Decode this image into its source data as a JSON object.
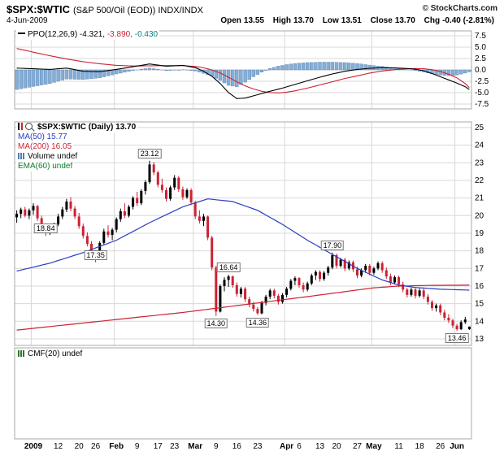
{
  "header": {
    "symbol": "$SPX:$WTIC",
    "description": "(S&P 500/Oil (EOD)) INDX/INDX",
    "copyright": "© StockCharts.com",
    "date": "4-Jun-2009",
    "quote": {
      "open_label": "Open",
      "open": "13.55",
      "high_label": "High",
      "high": "13.70",
      "low_label": "Low",
      "low": "13.51",
      "close_label": "Close",
      "close": "13.70",
      "chg_label": "Chg",
      "chg": "-0.40 (-2.81%)"
    }
  },
  "legends": {
    "ppo": {
      "label": "PPO(12,26,9) -4.321,",
      "signal_value": "-3.890,",
      "hist_value": "-0.430"
    },
    "main": {
      "symbol": "$SPX:$WTIC (Daily) 13.70",
      "ma50": "MA(50) 15.77",
      "ma200": "MA(200) 16.05",
      "volume": "Volume undef",
      "ema": "EMA(60) undef"
    },
    "cmf": {
      "label": "CMF(20) undef"
    }
  },
  "colors": {
    "up": "#000000",
    "down": "#cc2233",
    "ma50": "#2a3ec2",
    "ma200": "#cc2233",
    "ppo_line": "#000000",
    "signal": "#cc2233",
    "hist_fill": "#85aed6",
    "hist_stroke": "#5580b0",
    "grid": "#d8d8d8",
    "border": "#a8a8a8",
    "legend_blue": "#2a3ec2",
    "legend_red": "#cc2233",
    "legend_green": "#0b7d2b",
    "legend_teal": "#0b7d7d"
  },
  "chart_data": {
    "type": "candlestick",
    "title": "$SPX:$WTIC (Daily)",
    "last_close": 13.7,
    "legend_position": "top-left",
    "grid": true,
    "main": {
      "ylim": [
        13,
        25
      ],
      "yticks": [
        25,
        24,
        23,
        22,
        21,
        20,
        19,
        18,
        17,
        16,
        15,
        14,
        13
      ],
      "candles_ohlc": [
        [
          19.9,
          20.3,
          19.6,
          20.1
        ],
        [
          20.1,
          20.45,
          19.85,
          20.35
        ],
        [
          20.35,
          20.5,
          19.9,
          20.0
        ],
        [
          20.0,
          20.4,
          19.8,
          20.3
        ],
        [
          20.3,
          20.7,
          20.05,
          20.55
        ],
        [
          20.55,
          20.6,
          19.7,
          19.85
        ],
        [
          19.85,
          20.0,
          19.2,
          19.35
        ],
        [
          19.35,
          19.5,
          18.84,
          19.0
        ],
        [
          19.0,
          19.45,
          18.9,
          19.35
        ],
        [
          19.35,
          19.6,
          19.0,
          19.5
        ],
        [
          19.5,
          20.1,
          19.4,
          19.95
        ],
        [
          19.95,
          20.5,
          19.8,
          20.35
        ],
        [
          20.35,
          20.95,
          20.2,
          20.8
        ],
        [
          20.8,
          21.05,
          20.25,
          20.4
        ],
        [
          20.4,
          20.55,
          19.8,
          19.95
        ],
        [
          19.95,
          20.15,
          19.25,
          19.4
        ],
        [
          19.4,
          19.55,
          18.7,
          18.85
        ],
        [
          18.85,
          19.05,
          18.25,
          18.4
        ],
        [
          18.4,
          18.55,
          17.75,
          17.9
        ],
        [
          17.9,
          18.05,
          17.35,
          17.8
        ],
        [
          17.8,
          18.55,
          17.7,
          18.45
        ],
        [
          18.45,
          19.25,
          18.35,
          19.1
        ],
        [
          19.1,
          19.45,
          18.75,
          18.9
        ],
        [
          18.9,
          19.3,
          18.6,
          19.2
        ],
        [
          19.2,
          19.9,
          19.05,
          19.8
        ],
        [
          19.8,
          20.4,
          19.65,
          20.25
        ],
        [
          20.25,
          20.7,
          19.85,
          20.0
        ],
        [
          20.0,
          20.6,
          19.9,
          20.5
        ],
        [
          20.5,
          21.1,
          20.35,
          21.0
        ],
        [
          21.0,
          21.35,
          20.55,
          20.7
        ],
        [
          20.7,
          21.5,
          20.6,
          21.4
        ],
        [
          21.4,
          22.0,
          21.2,
          21.9
        ],
        [
          21.9,
          23.12,
          21.8,
          22.9
        ],
        [
          22.9,
          23.05,
          22.3,
          22.45
        ],
        [
          22.45,
          22.55,
          21.6,
          21.75
        ],
        [
          21.75,
          22.1,
          21.3,
          21.45
        ],
        [
          21.45,
          21.6,
          20.8,
          20.95
        ],
        [
          20.95,
          21.7,
          20.85,
          21.6
        ],
        [
          21.6,
          22.3,
          21.45,
          22.15
        ],
        [
          22.15,
          22.25,
          21.35,
          21.5
        ],
        [
          21.5,
          21.65,
          20.9,
          21.05
        ],
        [
          21.05,
          21.55,
          20.95,
          21.45
        ],
        [
          21.45,
          21.55,
          20.6,
          20.75
        ],
        [
          20.75,
          20.85,
          19.8,
          19.95
        ],
        [
          19.95,
          20.3,
          19.55,
          19.7
        ],
        [
          19.7,
          20.1,
          19.4,
          19.95
        ],
        [
          19.95,
          20.0,
          18.6,
          18.75
        ],
        [
          18.75,
          18.85,
          16.9,
          17.05
        ],
        [
          17.05,
          17.15,
          14.3,
          14.55
        ],
        [
          14.55,
          16.1,
          14.5,
          16.0
        ],
        [
          16.0,
          16.5,
          15.7,
          16.35
        ],
        [
          16.35,
          16.64,
          15.95,
          16.55
        ],
        [
          16.55,
          16.6,
          15.9,
          16.05
        ],
        [
          16.05,
          16.2,
          15.4,
          15.55
        ],
        [
          15.55,
          15.95,
          15.35,
          15.85
        ],
        [
          15.85,
          15.95,
          15.1,
          15.25
        ],
        [
          15.25,
          15.4,
          14.8,
          14.95
        ],
        [
          14.95,
          15.1,
          14.55,
          14.7
        ],
        [
          14.7,
          14.8,
          14.36,
          14.45
        ],
        [
          14.45,
          15.15,
          14.4,
          15.05
        ],
        [
          15.05,
          15.5,
          14.9,
          15.4
        ],
        [
          15.4,
          15.85,
          15.25,
          15.75
        ],
        [
          15.75,
          15.85,
          15.3,
          15.45
        ],
        [
          15.45,
          15.55,
          14.95,
          15.1
        ],
        [
          15.1,
          15.6,
          15.0,
          15.5
        ],
        [
          15.5,
          15.95,
          15.35,
          15.85
        ],
        [
          15.85,
          16.4,
          15.75,
          16.3
        ],
        [
          16.3,
          16.55,
          16.05,
          16.45
        ],
        [
          16.45,
          16.5,
          15.9,
          16.05
        ],
        [
          16.05,
          16.2,
          15.65,
          15.8
        ],
        [
          15.8,
          16.25,
          15.7,
          16.15
        ],
        [
          16.15,
          16.7,
          16.05,
          16.6
        ],
        [
          16.6,
          16.9,
          16.35,
          16.8
        ],
        [
          16.8,
          16.9,
          16.25,
          16.4
        ],
        [
          16.4,
          16.85,
          16.3,
          16.75
        ],
        [
          16.75,
          17.15,
          16.6,
          17.05
        ],
        [
          17.05,
          17.9,
          16.95,
          17.75
        ],
        [
          17.75,
          17.85,
          17.0,
          17.15
        ],
        [
          17.15,
          17.6,
          17.05,
          17.5
        ],
        [
          17.5,
          17.6,
          16.85,
          17.0
        ],
        [
          17.0,
          17.45,
          16.9,
          17.35
        ],
        [
          17.35,
          17.45,
          16.8,
          16.95
        ],
        [
          16.95,
          17.1,
          16.45,
          16.6
        ],
        [
          16.6,
          17.0,
          16.5,
          16.9
        ],
        [
          16.9,
          17.25,
          16.75,
          17.15
        ],
        [
          17.15,
          17.25,
          16.6,
          16.75
        ],
        [
          16.75,
          17.1,
          16.65,
          17.0
        ],
        [
          17.0,
          17.4,
          16.9,
          17.3
        ],
        [
          17.3,
          17.4,
          16.75,
          16.9
        ],
        [
          16.9,
          17.05,
          16.4,
          16.55
        ],
        [
          16.55,
          16.7,
          16.05,
          16.2
        ],
        [
          16.2,
          16.6,
          16.1,
          16.5
        ],
        [
          16.5,
          16.6,
          15.95,
          16.1
        ],
        [
          16.1,
          16.25,
          15.65,
          15.8
        ],
        [
          15.8,
          15.9,
          15.35,
          15.5
        ],
        [
          15.5,
          15.9,
          15.4,
          15.8
        ],
        [
          15.8,
          15.9,
          15.3,
          15.45
        ],
        [
          15.45,
          15.85,
          15.35,
          15.75
        ],
        [
          15.75,
          15.85,
          15.25,
          15.4
        ],
        [
          15.4,
          15.55,
          14.95,
          15.1
        ],
        [
          15.1,
          15.2,
          14.6,
          14.75
        ],
        [
          14.75,
          15.0,
          14.55,
          14.9
        ],
        [
          14.9,
          15.0,
          14.35,
          14.5
        ],
        [
          14.5,
          14.65,
          14.05,
          14.2
        ],
        [
          14.2,
          14.4,
          13.9,
          14.05
        ],
        [
          14.05,
          14.15,
          13.6,
          13.75
        ],
        [
          13.75,
          13.85,
          13.46,
          13.55
        ],
        [
          13.55,
          14.05,
          13.5,
          13.95
        ],
        [
          13.95,
          14.25,
          13.85,
          14.1
        ],
        [
          13.55,
          13.7,
          13.51,
          13.7
        ]
      ],
      "ma50_points": [
        [
          0,
          16.85
        ],
        [
          8,
          17.3
        ],
        [
          16,
          17.9
        ],
        [
          24,
          18.6
        ],
        [
          32,
          19.6
        ],
        [
          40,
          20.5
        ],
        [
          46,
          20.95
        ],
        [
          52,
          20.8
        ],
        [
          58,
          20.3
        ],
        [
          64,
          19.5
        ],
        [
          70,
          18.6
        ],
        [
          76,
          17.8
        ],
        [
          82,
          17.0
        ],
        [
          88,
          16.35
        ],
        [
          92,
          16.05
        ],
        [
          96,
          15.92
        ],
        [
          102,
          15.82
        ],
        [
          109,
          15.77
        ]
      ],
      "ma200_points": [
        [
          0,
          13.5
        ],
        [
          10,
          13.75
        ],
        [
          20,
          14.0
        ],
        [
          30,
          14.25
        ],
        [
          40,
          14.5
        ],
        [
          50,
          14.8
        ],
        [
          60,
          15.1
        ],
        [
          70,
          15.4
        ],
        [
          78,
          15.65
        ],
        [
          86,
          15.9
        ],
        [
          92,
          16.0
        ],
        [
          100,
          16.04
        ],
        [
          109,
          16.05
        ]
      ],
      "annotations": [
        {
          "i": 7,
          "v": 18.84,
          "text": "18.84",
          "side": "above"
        },
        {
          "i": 19,
          "v": 17.35,
          "text": "17.35",
          "side": "above"
        },
        {
          "i": 32,
          "v": 23.12,
          "text": "23.12",
          "side": "above"
        },
        {
          "i": 48,
          "v": 14.3,
          "text": "14.30",
          "side": "below"
        },
        {
          "i": 51,
          "v": 16.64,
          "text": "16.64",
          "side": "above"
        },
        {
          "i": 58,
          "v": 14.36,
          "text": "14.36",
          "side": "below"
        },
        {
          "i": 76,
          "v": 17.9,
          "text": "17.90",
          "side": "above"
        },
        {
          "i": 106,
          "v": 13.46,
          "text": "13.46",
          "side": "below"
        }
      ]
    },
    "ppo": {
      "ylim": [
        -7.5,
        7.5
      ],
      "yticks": [
        "7.5",
        "5.0",
        "2.5",
        "0.0",
        "-2.5",
        "-5.0",
        "-7.5"
      ],
      "ppo_points": [
        [
          0,
          0.4
        ],
        [
          8,
          0.1
        ],
        [
          12,
          0.4
        ],
        [
          16,
          -0.3
        ],
        [
          20,
          -0.4
        ],
        [
          24,
          0.1
        ],
        [
          28,
          0.7
        ],
        [
          32,
          1.3
        ],
        [
          36,
          0.8
        ],
        [
          40,
          1.0
        ],
        [
          43,
          0.5
        ],
        [
          45,
          -0.3
        ],
        [
          47,
          -1.4
        ],
        [
          49,
          -3.0
        ],
        [
          51,
          -5.0
        ],
        [
          53,
          -6.3
        ],
        [
          55,
          -6.2
        ],
        [
          57,
          -5.7
        ],
        [
          59,
          -5.2
        ],
        [
          61,
          -4.7
        ],
        [
          64,
          -4.0
        ],
        [
          67,
          -3.2
        ],
        [
          70,
          -2.4
        ],
        [
          73,
          -1.6
        ],
        [
          76,
          -0.9
        ],
        [
          79,
          -0.3
        ],
        [
          82,
          0.1
        ],
        [
          85,
          0.35
        ],
        [
          88,
          0.5
        ],
        [
          91,
          0.45
        ],
        [
          94,
          0.3
        ],
        [
          96,
          0.15
        ],
        [
          98,
          -0.2
        ],
        [
          100,
          -0.8
        ],
        [
          102,
          -1.5
        ],
        [
          104,
          -2.2
        ],
        [
          106,
          -2.9
        ],
        [
          108,
          -3.7
        ],
        [
          109,
          -4.32
        ]
      ],
      "signal_points": [
        [
          0,
          4.7
        ],
        [
          4,
          3.9
        ],
        [
          8,
          3.1
        ],
        [
          12,
          2.4
        ],
        [
          16,
          1.8
        ],
        [
          20,
          1.35
        ],
        [
          24,
          1.0
        ],
        [
          28,
          0.85
        ],
        [
          32,
          0.9
        ],
        [
          36,
          0.95
        ],
        [
          40,
          0.95
        ],
        [
          43,
          0.75
        ],
        [
          45,
          0.45
        ],
        [
          47,
          0.0
        ],
        [
          49,
          -0.7
        ],
        [
          51,
          -1.6
        ],
        [
          53,
          -2.6
        ],
        [
          55,
          -3.5
        ],
        [
          57,
          -4.2
        ],
        [
          59,
          -4.7
        ],
        [
          61,
          -5.0
        ],
        [
          63,
          -5.05
        ],
        [
          65,
          -4.9
        ],
        [
          67,
          -4.6
        ],
        [
          70,
          -4.0
        ],
        [
          73,
          -3.3
        ],
        [
          76,
          -2.6
        ],
        [
          79,
          -1.9
        ],
        [
          82,
          -1.3
        ],
        [
          85,
          -0.7
        ],
        [
          88,
          -0.25
        ],
        [
          91,
          0.05
        ],
        [
          94,
          0.25
        ],
        [
          96,
          0.3
        ],
        [
          98,
          0.25
        ],
        [
          100,
          0.05
        ],
        [
          102,
          -0.35
        ],
        [
          104,
          -0.95
        ],
        [
          106,
          -1.75
        ],
        [
          108,
          -3.0
        ],
        [
          109,
          -3.89
        ]
      ]
    },
    "cmf": {
      "label": "CMF(20) undef",
      "empty": true
    },
    "xticks": [
      {
        "i": 4,
        "label": "2009",
        "bold": true
      },
      {
        "i": 10,
        "label": "12"
      },
      {
        "i": 15,
        "label": "20"
      },
      {
        "i": 19,
        "label": "26"
      },
      {
        "i": 24,
        "label": "Feb",
        "bold": true
      },
      {
        "i": 29,
        "label": "9"
      },
      {
        "i": 34,
        "label": "17"
      },
      {
        "i": 38,
        "label": "23"
      },
      {
        "i": 43,
        "label": "Mar",
        "bold": true
      },
      {
        "i": 48,
        "label": "9"
      },
      {
        "i": 53,
        "label": "16"
      },
      {
        "i": 58,
        "label": "23"
      },
      {
        "i": 65,
        "label": "Apr",
        "bold": true
      },
      {
        "i": 68,
        "label": "6"
      },
      {
        "i": 73,
        "label": "13"
      },
      {
        "i": 77,
        "label": "20"
      },
      {
        "i": 82,
        "label": "27"
      },
      {
        "i": 86,
        "label": "May",
        "bold": true
      },
      {
        "i": 92,
        "label": "11"
      },
      {
        "i": 97,
        "label": "18"
      },
      {
        "i": 102,
        "label": "26"
      },
      {
        "i": 106,
        "label": "Jun",
        "bold": true
      }
    ],
    "month_starts": [
      4,
      24,
      43,
      65,
      86,
      106
    ]
  }
}
